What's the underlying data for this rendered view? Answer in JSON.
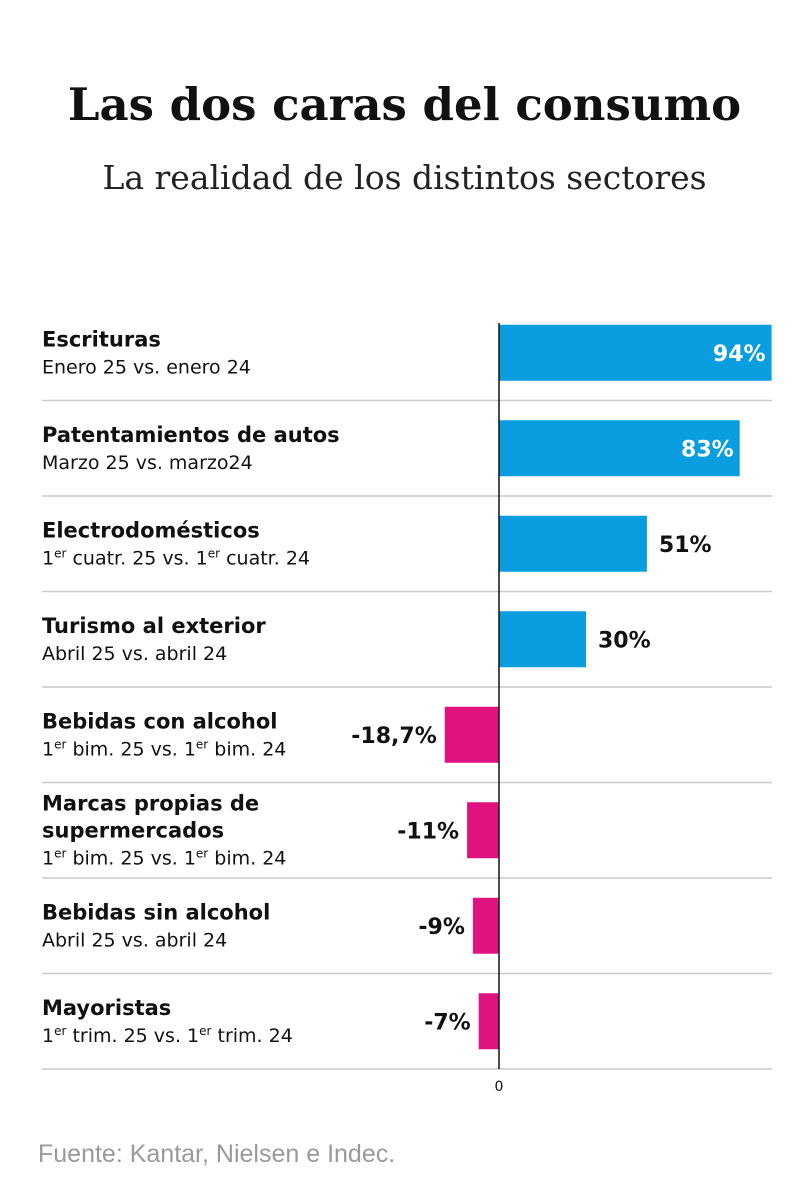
{
  "title": "Las dos caras del consumo",
  "subtitle": "La realidad de los distintos sectores",
  "source": "Fuente: Kantar, Nielsen e Indec.",
  "colors": {
    "positive": "#0a9ee0",
    "negative": "#e0127f",
    "label_inside": "#ffffff",
    "label_outside": "#111111",
    "rule": "#c9c9c9",
    "axis": "#111111"
  },
  "chart_data": {
    "type": "bar",
    "orientation": "horizontal",
    "zero_label": "0",
    "xlim": [
      -20,
      100
    ],
    "grid": false,
    "categories": [
      {
        "name": [
          "Escrituras"
        ],
        "period": [
          [
            "Enero 25 vs. enero 24"
          ]
        ],
        "value": 94,
        "label": "94%",
        "label_inside": true
      },
      {
        "name": [
          "Patentamientos de autos"
        ],
        "period": [
          [
            "Marzo 25 vs. marzo24"
          ]
        ],
        "value": 83,
        "label": "83%",
        "label_inside": true
      },
      {
        "name": [
          "Electrodomésticos"
        ],
        "period": [
          [
            "1",
            "er",
            " cuatr. 25 vs. 1",
            "er",
            " cuatr. 24"
          ]
        ],
        "value": 51,
        "label": "51%",
        "label_inside": false
      },
      {
        "name": [
          "Turismo al exterior"
        ],
        "period": [
          [
            "Abril 25 vs. abril 24"
          ]
        ],
        "value": 30,
        "label": "30%",
        "label_inside": false
      },
      {
        "name": [
          "Bebidas con alcohol"
        ],
        "period": [
          [
            "1",
            "er",
            " bim. 25 vs. 1",
            "er",
            " bim. 24"
          ]
        ],
        "value": -18.7,
        "label": "-18,7%",
        "label_inside": false
      },
      {
        "name": [
          "Marcas propias de",
          "supermercados"
        ],
        "period": [
          [
            "1",
            "er",
            " bim. 25 vs. 1",
            "er",
            " bim. 24"
          ]
        ],
        "value": -11,
        "label": "-11%",
        "label_inside": false
      },
      {
        "name": [
          "Bebidas sin alcohol"
        ],
        "period": [
          [
            "Abril 25 vs. abril 24"
          ]
        ],
        "value": -9,
        "label": "-9%",
        "label_inside": false
      },
      {
        "name": [
          "Mayoristas"
        ],
        "period": [
          [
            "1",
            "er",
            " trim. 25 vs. 1",
            "er",
            " trim. 24"
          ]
        ],
        "value": -7,
        "label": "-7%",
        "label_inside": false
      }
    ]
  }
}
